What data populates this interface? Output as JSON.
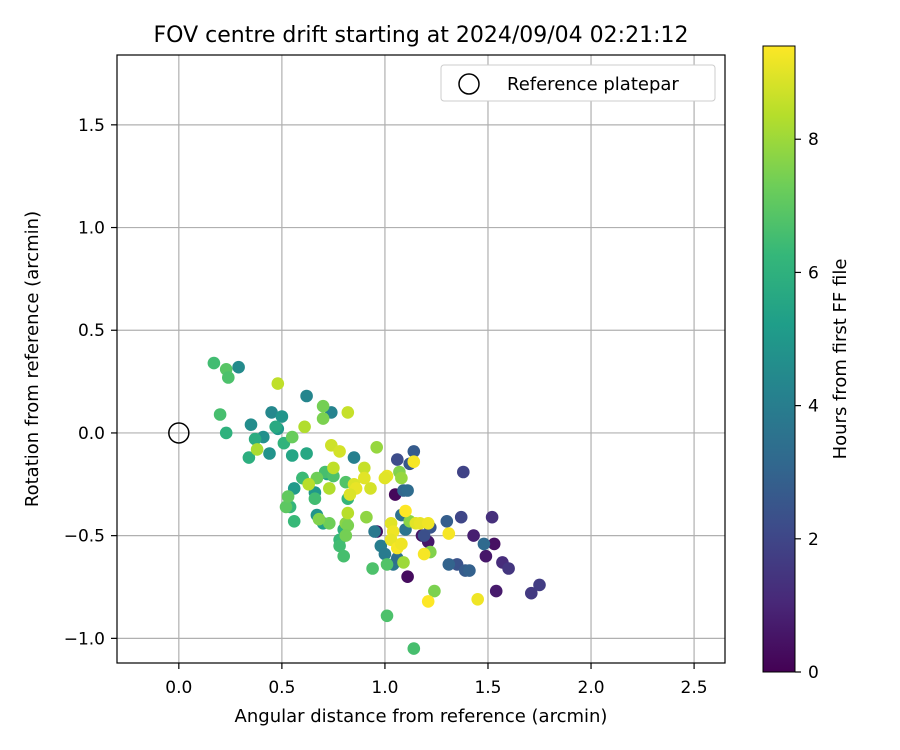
{
  "chart_data": {
    "type": "scatter",
    "title": "FOV centre drift starting at 2024/09/04 02:21:12",
    "xlabel": "Angular distance from reference (arcmin)",
    "ylabel": "Rotation from reference (arcmin)",
    "xlim": [
      -0.3,
      2.65
    ],
    "ylim": [
      -1.12,
      1.84
    ],
    "xticks": [
      "0.0",
      "0.5",
      "1.0",
      "1.5",
      "2.0",
      "2.5"
    ],
    "yticks": [
      "−1.0",
      "−0.5",
      "0.0",
      "0.5",
      "1.0",
      "1.5"
    ],
    "grid": true,
    "legend": {
      "placement": "top-right",
      "label": "Reference platepar"
    },
    "reference": {
      "x": 0.0,
      "y": 0.0
    },
    "colorbar": {
      "label": "Hours from first FF file",
      "range": [
        0,
        9.4
      ],
      "ticks": [
        "0",
        "2",
        "4",
        "6",
        "8"
      ],
      "colormap": [
        "#440154",
        "#482878",
        "#3e4989",
        "#31688e",
        "#26828e",
        "#1f9e89",
        "#35b779",
        "#6ece58",
        "#b5de2b",
        "#fde725"
      ]
    },
    "series": [
      {
        "points": [
          [
            1.05,
            -0.3,
            0.2
          ],
          [
            1.11,
            -0.7,
            0.3
          ],
          [
            0.96,
            -0.48,
            0.4
          ],
          [
            1.18,
            -0.5,
            0.5
          ],
          [
            1.21,
            -0.53,
            0.6
          ],
          [
            1.43,
            -0.5,
            0.8
          ],
          [
            1.49,
            -0.6,
            0.6
          ],
          [
            1.53,
            -0.54,
            0.4
          ],
          [
            1.54,
            -0.77,
            0.7
          ],
          [
            1.57,
            -0.63,
            1.2
          ],
          [
            1.6,
            -0.66,
            1.5
          ],
          [
            1.71,
            -0.78,
            1.6
          ],
          [
            1.75,
            -0.74,
            1.7
          ],
          [
            1.52,
            -0.41,
            1.3
          ],
          [
            1.38,
            -0.19,
            1.9
          ],
          [
            1.37,
            -0.41,
            2.0
          ],
          [
            1.35,
            -0.64,
            2.4
          ],
          [
            1.39,
            -0.67,
            2.7
          ],
          [
            1.41,
            -0.67,
            2.9
          ],
          [
            1.31,
            -0.64,
            3.0
          ],
          [
            1.3,
            -0.43,
            2.8
          ],
          [
            1.22,
            -0.46,
            2.5
          ],
          [
            1.19,
            -0.5,
            2.3
          ],
          [
            1.14,
            -0.09,
            2.7
          ],
          [
            1.12,
            -0.15,
            2.6
          ],
          [
            1.06,
            -0.13,
            2.2
          ],
          [
            1.09,
            -0.28,
            3.1
          ],
          [
            1.11,
            -0.28,
            3.3
          ],
          [
            1.08,
            -0.4,
            3.5
          ],
          [
            1.1,
            -0.47,
            3.6
          ],
          [
            0.95,
            -0.48,
            3.8
          ],
          [
            0.98,
            -0.55,
            4.0
          ],
          [
            1.0,
            -0.59,
            3.9
          ],
          [
            1.04,
            -0.64,
            3.7
          ],
          [
            1.06,
            -0.61,
            3.4
          ],
          [
            1.48,
            -0.54,
            3.2
          ],
          [
            0.85,
            -0.12,
            4.1
          ],
          [
            0.74,
            0.1,
            4.2
          ],
          [
            0.62,
            0.18,
            4.3
          ],
          [
            0.45,
            0.1,
            4.4
          ],
          [
            0.29,
            0.32,
            4.5
          ],
          [
            0.35,
            0.04,
            4.6
          ],
          [
            0.41,
            -0.02,
            4.7
          ],
          [
            0.44,
            -0.1,
            4.8
          ],
          [
            0.5,
            0.08,
            4.9
          ],
          [
            0.48,
            0.02,
            5.0
          ],
          [
            0.56,
            -0.27,
            5.1
          ],
          [
            0.6,
            -0.22,
            5.2
          ],
          [
            0.66,
            -0.29,
            5.0
          ],
          [
            0.67,
            -0.4,
            4.9
          ],
          [
            0.7,
            -0.44,
            5.3
          ],
          [
            0.72,
            -0.2,
            5.4
          ],
          [
            0.55,
            -0.11,
            5.5
          ],
          [
            0.62,
            -0.1,
            5.6
          ],
          [
            0.47,
            0.03,
            5.7
          ],
          [
            0.37,
            -0.03,
            5.8
          ],
          [
            0.34,
            -0.12,
            5.9
          ],
          [
            0.23,
            0.0,
            6.0
          ],
          [
            0.51,
            -0.05,
            6.1
          ],
          [
            0.54,
            -0.36,
            6.2
          ],
          [
            0.56,
            -0.43,
            6.3
          ],
          [
            0.6,
            -0.22,
            6.4
          ],
          [
            0.66,
            -0.32,
            6.5
          ],
          [
            0.71,
            -0.19,
            6.6
          ],
          [
            0.75,
            -0.21,
            6.7
          ],
          [
            0.81,
            -0.24,
            6.8
          ],
          [
            0.82,
            -0.32,
            6.2
          ],
          [
            0.8,
            -0.47,
            6.0
          ],
          [
            0.78,
            -0.52,
            6.3
          ],
          [
            0.78,
            -0.55,
            6.5
          ],
          [
            0.8,
            -0.6,
            6.6
          ],
          [
            0.94,
            -0.66,
            6.7
          ],
          [
            1.01,
            -0.64,
            6.8
          ],
          [
            1.01,
            -0.89,
            6.7
          ],
          [
            1.14,
            -1.05,
            6.6
          ],
          [
            0.17,
            0.34,
            6.5
          ],
          [
            0.23,
            0.31,
            6.9
          ],
          [
            0.24,
            0.27,
            6.7
          ],
          [
            0.2,
            0.09,
            6.6
          ],
          [
            0.52,
            -0.36,
            7.0
          ],
          [
            0.53,
            -0.31,
            7.1
          ],
          [
            0.55,
            -0.02,
            7.2
          ],
          [
            0.67,
            -0.22,
            7.3
          ],
          [
            0.7,
            0.13,
            7.4
          ],
          [
            0.7,
            0.07,
            7.5
          ],
          [
            0.73,
            -0.44,
            7.3
          ],
          [
            0.68,
            -0.42,
            7.6
          ],
          [
            0.81,
            -0.44,
            7.7
          ],
          [
            0.82,
            -0.45,
            7.5
          ],
          [
            0.81,
            -0.5,
            7.4
          ],
          [
            0.96,
            -0.07,
            7.9
          ],
          [
            0.91,
            -0.41,
            7.8
          ],
          [
            1.07,
            -0.19,
            7.6
          ],
          [
            1.08,
            -0.22,
            7.9
          ],
          [
            1.09,
            -0.63,
            8.0
          ],
          [
            1.12,
            -0.43,
            7.7
          ],
          [
            1.22,
            -0.58,
            7.6
          ],
          [
            1.24,
            -0.77,
            7.5
          ],
          [
            0.38,
            -0.08,
            8.2
          ],
          [
            0.61,
            0.03,
            8.3
          ],
          [
            0.63,
            -0.25,
            8.4
          ],
          [
            0.48,
            0.24,
            8.5
          ],
          [
            0.82,
            0.1,
            8.6
          ],
          [
            0.73,
            -0.27,
            8.3
          ],
          [
            0.74,
            -0.06,
            8.7
          ],
          [
            0.78,
            -0.09,
            8.8
          ],
          [
            0.75,
            -0.17,
            8.5
          ],
          [
            0.82,
            -0.39,
            8.4
          ],
          [
            0.85,
            -0.25,
            8.9
          ],
          [
            0.9,
            -0.17,
            8.6
          ],
          [
            0.93,
            -0.27,
            8.8
          ],
          [
            0.9,
            -0.22,
            9.0
          ],
          [
            1.01,
            -0.21,
            9.1
          ],
          [
            1.03,
            -0.44,
            9.0
          ],
          [
            1.04,
            -0.48,
            9.2
          ],
          [
            1.03,
            -0.52,
            9.1
          ],
          [
            1.06,
            -0.56,
            9.3
          ],
          [
            1.08,
            -0.54,
            9.2
          ],
          [
            1.14,
            -0.14,
            9.3
          ],
          [
            1.1,
            -0.38,
            9.4
          ],
          [
            1.15,
            -0.44,
            9.0
          ],
          [
            1.17,
            -0.44,
            9.1
          ],
          [
            1.21,
            -0.44,
            9.2
          ],
          [
            1.19,
            -0.59,
            9.3
          ],
          [
            1.21,
            -0.82,
            9.4
          ],
          [
            1.45,
            -0.81,
            9.2
          ],
          [
            1.31,
            -0.49,
            9.3
          ],
          [
            1.0,
            -0.22,
            9.0
          ],
          [
            0.86,
            -0.27,
            9.1
          ],
          [
            0.83,
            -0.3,
            8.9
          ]
        ]
      }
    ]
  }
}
